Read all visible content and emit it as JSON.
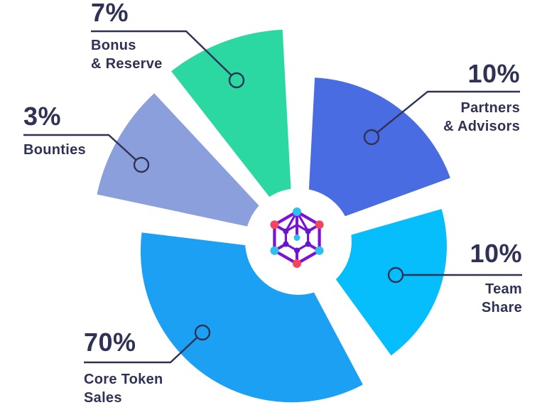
{
  "background_color": "#FFFFFF",
  "text_color": "#2F3254",
  "leader_line_color": "#2F3254",
  "logo": {
    "name": "hexagon-network-logo",
    "line_color": "#7A12D8",
    "outer_dot_colors": {
      "top": "#2EC0EC",
      "upper_right": "#F4455C",
      "lower_right": "#2EC0EC",
      "bottom": "#F4455C",
      "lower_left": "#2EC0EC",
      "upper_left": "#F4455C"
    },
    "inner_dot_color": "#6019C4",
    "center_dot_color": "#2EC0EC"
  },
  "chart_data": {
    "type": "pie",
    "unit": "%",
    "legend": false,
    "center": [
      420,
      340
    ],
    "hub_radius": 75,
    "hub_color": "#FFFFFF",
    "categories": [
      "Core Token Sales",
      "Team Share",
      "Partners & Advisors",
      "Bounties",
      "Bonus & Reserve"
    ],
    "values": [
      70,
      10,
      10,
      3,
      7
    ],
    "slices": [
      {
        "label": "Core Token Sales",
        "pct_label": "70%",
        "name_label": "Core Token\nSales",
        "value": 70,
        "color": "#1CA0F4",
        "start_angle": 152,
        "end_angle": 277,
        "radius": 213,
        "explode": 16,
        "leader_points": [
          [
            118,
            510
          ],
          [
            240,
            510
          ],
          [
            277.7,
            474.8
          ]
        ],
        "marker": [
          285,
          468
        ]
      },
      {
        "label": "Team Share",
        "pct_label": "10%",
        "name_label": "Team\nShare",
        "value": 10,
        "color": "#05BEFB",
        "start_angle": 74,
        "end_angle": 144,
        "radius": 190,
        "explode": 20,
        "leader_points": [
          [
            735,
            387
          ],
          [
            567,
            387
          ]
        ],
        "marker": [
          557,
          387
        ]
      },
      {
        "label": "Partners & Advisors",
        "pct_label": "10%",
        "name_label": "Partners\n& Advisors",
        "value": 10,
        "color": "#4A6CE3",
        "start_angle": 3,
        "end_angle": 70,
        "radius": 215,
        "explode": 20,
        "leader_points": [
          [
            732,
            129
          ],
          [
            602,
            129
          ],
          [
            530.8,
            186.7
          ]
        ],
        "marker": [
          523,
          193
        ]
      },
      {
        "label": "Bounties",
        "pct_label": "3%",
        "name_label": "Bounties",
        "value": 3,
        "color": "#8C9FDD",
        "start_angle": 282,
        "end_angle": 317,
        "radius": 272,
        "explode": 20,
        "leader_points": [
          [
            33,
            190
          ],
          [
            153,
            190
          ],
          [
            191.6,
            225.3
          ]
        ],
        "marker": [
          199,
          232
        ]
      },
      {
        "label": "Bonus & Reserve",
        "pct_label": "7%",
        "name_label": "Bonus\n& Reserve",
        "value": 7,
        "color": "#2BD8A2",
        "start_angle": 322,
        "end_angle": 357,
        "radius": 278,
        "explode": 22,
        "leader_points": [
          [
            128,
            44
          ],
          [
            262,
            44
          ],
          [
            325.8,
            106
          ]
        ],
        "marker": [
          333,
          113
        ]
      }
    ]
  }
}
